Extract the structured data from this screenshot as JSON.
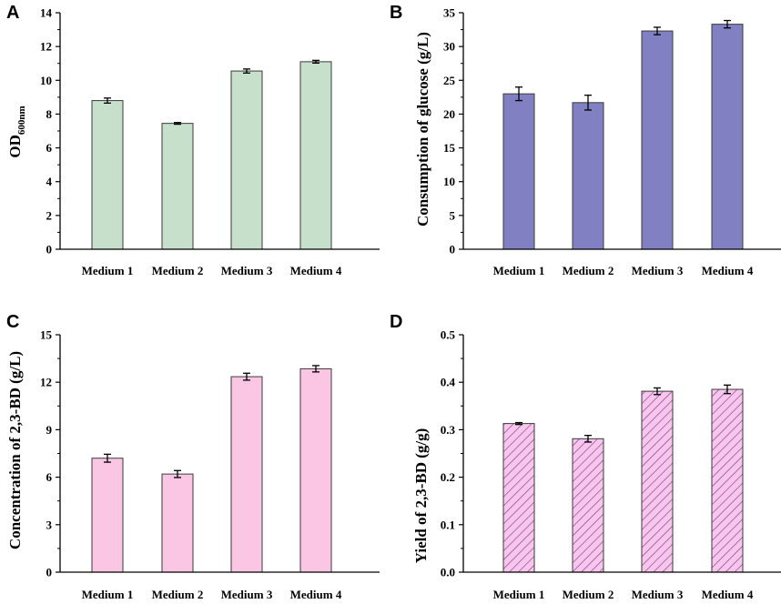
{
  "chart_data": [
    {
      "panel": "A",
      "type": "bar",
      "categories": [
        "Medium 1",
        "Medium 2",
        "Medium 3",
        "Medium 4"
      ],
      "values": [
        8.8,
        7.45,
        10.55,
        11.1
      ],
      "errors": [
        0.15,
        0.05,
        0.12,
        0.08
      ],
      "ylabel": "OD",
      "ylabel_sub": "600nm",
      "ylim": [
        0,
        14
      ],
      "yticks": [
        "0",
        "2",
        "4",
        "6",
        "8",
        "10",
        "12",
        "14"
      ],
      "fill": "#c6e0cc",
      "hatch": false
    },
    {
      "panel": "B",
      "type": "bar",
      "categories": [
        "Medium 1",
        "Medium 2",
        "Medium 3",
        "Medium 4"
      ],
      "values": [
        23.0,
        21.7,
        32.3,
        33.3
      ],
      "errors": [
        1.0,
        1.1,
        0.55,
        0.55
      ],
      "ylabel": "Consumption of glucose (g/L)",
      "ylabel_sub": "",
      "ylim": [
        0,
        35
      ],
      "yticks": [
        "0",
        "5",
        "10",
        "15",
        "20",
        "25",
        "30",
        "35"
      ],
      "fill": "#8080c2",
      "hatch": false
    },
    {
      "panel": "C",
      "type": "bar",
      "categories": [
        "Medium 1",
        "Medium 2",
        "Medium 3",
        "Medium 4"
      ],
      "values": [
        7.2,
        6.2,
        12.35,
        12.85
      ],
      "errors": [
        0.25,
        0.22,
        0.22,
        0.2
      ],
      "ylabel": "Concentration of 2,3-BD (g/L)",
      "ylabel_sub": "",
      "ylim": [
        0,
        15
      ],
      "yticks": [
        "0",
        "3",
        "6",
        "9",
        "12",
        "15"
      ],
      "fill": "#fbc6e3",
      "hatch": false
    },
    {
      "panel": "D",
      "type": "bar",
      "categories": [
        "Medium 1",
        "Medium 2",
        "Medium 3",
        "Medium 4"
      ],
      "values": [
        0.313,
        0.281,
        0.381,
        0.385
      ],
      "errors": [
        0.002,
        0.007,
        0.007,
        0.009
      ],
      "ylabel": "Yield of 2,3-BD (g/g)",
      "ylabel_sub": "",
      "ylim": [
        0,
        0.5
      ],
      "yticks": [
        "0.0",
        "0.1",
        "0.2",
        "0.3",
        "0.4",
        "0.5"
      ],
      "fill": "#f6c6ee",
      "hatch": true,
      "hatch_color": "#8a3d7a"
    }
  ]
}
